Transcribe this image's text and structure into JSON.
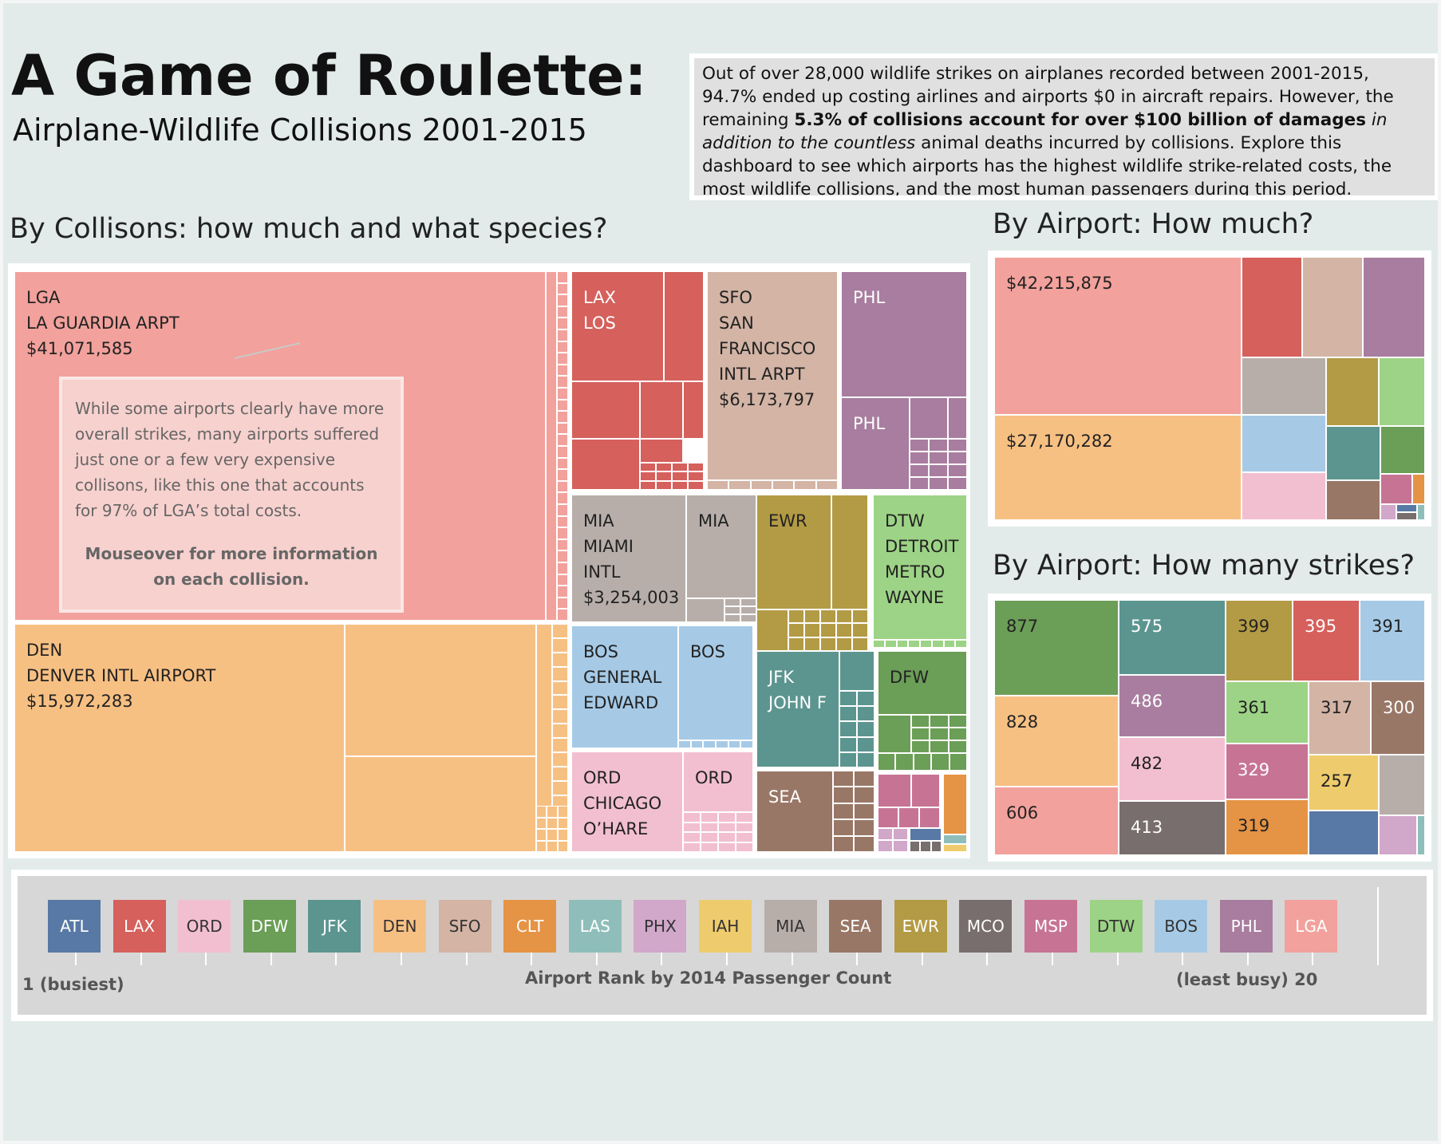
{
  "header": {
    "title": "A Game of Roulette:",
    "subtitle": "Airplane-Wildlife Collisions 2001-2015"
  },
  "intro": {
    "p1": "Out of over 28,000 wildlife strikes on airplanes recorded between 2001-2015, 94.7% ended up costing airlines and airports $0 in aircraft repairs. However, the remaining ",
    "bold": "5.3% of collisions account for over $100 billion of damages",
    "italic": " in addition to the countless",
    "p2": " animal deaths incurred by collisions. Explore this dashboard to see which  airports has the highest wildlife strike-related costs, the most wildlife collisions, and the most human passengers during this period."
  },
  "sections": {
    "collisions": "By Collisons: how much and what species?",
    "airport_cost": "By Airport: How much?",
    "airport_strikes": "By Airport: How many strikes?"
  },
  "callout": {
    "text": "While some airports clearly have more overall strikes, many airports suffered just one or a few very expensive collisons, like this one that accounts for 97% of LGA’s total costs.",
    "bold": "Mouseover for more information on each collision."
  },
  "colors": {
    "ATL": "#5879a5",
    "LAX": "#d5605c",
    "ORD": "#f2bfd0",
    "DFW": "#6b9e57",
    "JFK": "#5c9590",
    "DEN": "#f7c083",
    "SFO": "#d3b4a5",
    "CLT": "#e59344",
    "LAS": "#8fbeba",
    "PHX": "#d1a7ca",
    "IAH": "#eecb6d",
    "MIA": "#b7aeaa",
    "SEA": "#997766",
    "EWR": "#b39b45",
    "MCO": "#786e6d",
    "MSP": "#c77494",
    "DTW": "#9dd386",
    "BOS": "#a6cae6",
    "PHL": "#a87d9f",
    "LGA": "#f2a19c"
  },
  "chart_data": [
    {
      "type": "treemap",
      "name": "collisions",
      "title": "By Collisons: how much and what species?",
      "labeled_cells": [
        {
          "airport": "LGA",
          "label": "LGA\nLA GUARDIA ARPT\n$41,071,585",
          "value": 41071585
        },
        {
          "airport": "DEN",
          "label": "DEN\nDENVER INTL AIRPORT\n$15,972,283",
          "value": 15972283
        },
        {
          "airport": "LAX",
          "label": "LAX\nLOS"
        },
        {
          "airport": "SFO",
          "label": "SFO\nSAN\nFRANCISCO\nINTL ARPT\n$6,173,797",
          "value": 6173797
        },
        {
          "airport": "PHL",
          "label": "PHL"
        },
        {
          "airport": "PHL",
          "label": "PHL"
        },
        {
          "airport": "MIA",
          "label": "MIA\nMIAMI\nINTL\n$3,254,003",
          "value": 3254003
        },
        {
          "airport": "MIA",
          "label": "MIA"
        },
        {
          "airport": "EWR",
          "label": "EWR"
        },
        {
          "airport": "DTW",
          "label": "DTW\nDETROIT\nMETRO\nWAYNE"
        },
        {
          "airport": "BOS",
          "label": "BOS\nGENERAL\nEDWARD"
        },
        {
          "airport": "BOS",
          "label": "BOS"
        },
        {
          "airport": "JFK",
          "label": "JFK\nJOHN F"
        },
        {
          "airport": "DFW",
          "label": "DFW"
        },
        {
          "airport": "ORD",
          "label": "ORD\nCHICAGO\nO’HARE"
        },
        {
          "airport": "ORD",
          "label": "ORD"
        },
        {
          "airport": "SEA",
          "label": "SEA"
        }
      ]
    },
    {
      "type": "treemap",
      "name": "airport_cost",
      "title": "By Airport: How much?",
      "labels": [
        {
          "airport": "LGA",
          "value": 42215875,
          "label": "$42,215,875"
        },
        {
          "airport": "DEN",
          "value": 27170282,
          "label": "$27,170,282"
        }
      ]
    },
    {
      "type": "treemap",
      "name": "airport_strikes",
      "title": "By Airport: How many strikes?",
      "cells": [
        {
          "airport": "DFW",
          "value": 877
        },
        {
          "airport": "DEN",
          "value": 828
        },
        {
          "airport": "LGA",
          "value": 606
        },
        {
          "airport": "JFK",
          "value": 575
        },
        {
          "airport": "PHL",
          "value": 486
        },
        {
          "airport": "ORD",
          "value": 482
        },
        {
          "airport": "MCO",
          "value": 413
        },
        {
          "airport": "EWR",
          "value": 399
        },
        {
          "airport": "LAX",
          "value": 395
        },
        {
          "airport": "BOS",
          "value": 391
        },
        {
          "airport": "DTW",
          "value": 361
        },
        {
          "airport": "SFO",
          "value": 317
        },
        {
          "airport": "SEA",
          "value": 300
        },
        {
          "airport": "MSP",
          "value": 329
        },
        {
          "airport": "CLT",
          "value": 319
        },
        {
          "airport": "IAH",
          "value": 257
        }
      ]
    }
  ],
  "rank": {
    "airports": [
      "ATL",
      "LAX",
      "ORD",
      "DFW",
      "JFK",
      "DEN",
      "SFO",
      "CLT",
      "LAS",
      "PHX",
      "IAH",
      "MIA",
      "SEA",
      "EWR",
      "MCO",
      "MSP",
      "DTW",
      "BOS",
      "PHL",
      "LGA"
    ],
    "label_left": "1 (busiest)",
    "label_center": "Airport Rank by 2014 Passenger Count",
    "label_right": "(least busy) 20"
  }
}
